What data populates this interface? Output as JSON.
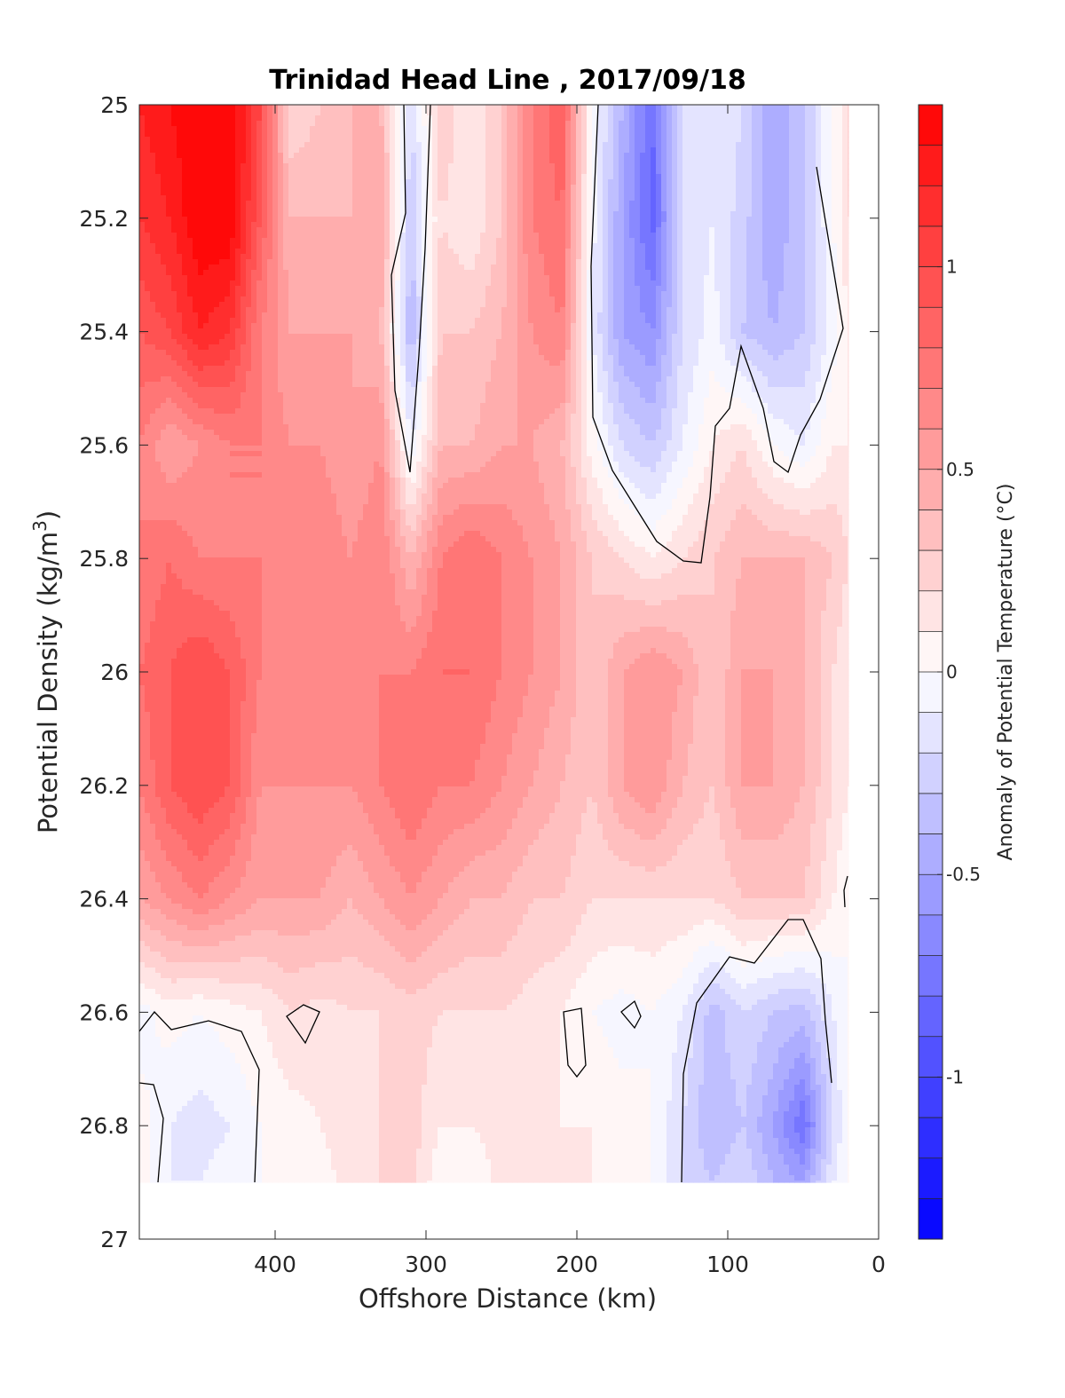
{
  "chart_data": {
    "type": "heatmap",
    "title": "Trinidad Head Line , 2017/09/18",
    "xlabel": "Offshore Distance (km)",
    "ylabel": "Potential Density (kg/m³)",
    "xlim": [
      490,
      0
    ],
    "x_direction": "reversed",
    "ylim": [
      25,
      27
    ],
    "y_direction": "reversed",
    "x_ticks": [
      "400",
      "300",
      "200",
      "100",
      "0"
    ],
    "y_ticks": [
      "25",
      "25.2",
      "25.4",
      "25.6",
      "25.8",
      "26",
      "26.2",
      "26.4",
      "26.6",
      "26.8",
      "27"
    ],
    "colorbar": {
      "label": "Anomaly of Potential Temperature (°C)",
      "range": [
        -1.4,
        1.4
      ],
      "levels": 28,
      "ticks": [
        "1",
        "0.5",
        "0",
        "-0.5",
        "-1"
      ],
      "low_color": "#0000ff",
      "mid_color": "#ffffff",
      "high_color": "#ff0000"
    },
    "grid_x": [
      490,
      470,
      450,
      430,
      410,
      390,
      370,
      350,
      330,
      310,
      290,
      270,
      250,
      230,
      210,
      190,
      170,
      150,
      130,
      110,
      90,
      70,
      50,
      30,
      20
    ],
    "grid_y": [
      25.0,
      25.2,
      25.4,
      25.6,
      25.8,
      26.0,
      26.2,
      26.4,
      26.6,
      26.8,
      26.9
    ],
    "anomaly": [
      [
        1.2,
        1.3,
        1.4,
        1.4,
        1.0,
        0.2,
        0.3,
        0.4,
        0.4,
        -0.2,
        0.3,
        0.1,
        0.3,
        0.7,
        0.9,
        0.0,
        -0.4,
        -0.8,
        -0.2,
        -0.1,
        -0.2,
        -0.5,
        -0.3,
        0.0,
        0.2
      ],
      [
        1.1,
        1.2,
        1.4,
        1.4,
        0.9,
        0.4,
        0.4,
        0.4,
        0.5,
        -0.3,
        0.2,
        0.1,
        0.3,
        0.7,
        0.8,
        -0.05,
        -0.5,
        -0.85,
        -0.2,
        -0.1,
        -0.25,
        -0.5,
        -0.3,
        0.0,
        0.2
      ],
      [
        0.9,
        1.0,
        1.2,
        1.1,
        0.7,
        0.5,
        0.5,
        0.5,
        0.4,
        -0.4,
        0.3,
        0.3,
        0.4,
        0.6,
        0.7,
        -0.1,
        -0.5,
        -0.6,
        -0.2,
        -0.05,
        -0.3,
        -0.4,
        -0.3,
        -0.05,
        0.1
      ],
      [
        0.7,
        0.5,
        0.6,
        0.7,
        0.7,
        0.6,
        0.6,
        0.5,
        0.6,
        -0.1,
        0.4,
        0.4,
        0.5,
        0.5,
        0.4,
        0.05,
        -0.2,
        -0.3,
        -0.1,
        0.1,
        0.2,
        0.0,
        -0.1,
        0.1,
        0.1
      ],
      [
        0.7,
        0.8,
        0.7,
        0.7,
        0.7,
        0.7,
        0.7,
        0.6,
        0.7,
        0.4,
        0.7,
        0.8,
        0.7,
        0.6,
        0.5,
        0.3,
        0.2,
        0.1,
        0.2,
        0.3,
        0.4,
        0.4,
        0.4,
        0.3,
        0.2
      ],
      [
        0.8,
        0.9,
        1.0,
        0.9,
        0.7,
        0.7,
        0.7,
        0.6,
        0.7,
        0.7,
        0.8,
        0.8,
        0.7,
        0.6,
        0.5,
        0.3,
        0.5,
        0.6,
        0.5,
        0.3,
        0.5,
        0.5,
        0.4,
        0.2,
        0.1
      ],
      [
        0.7,
        0.9,
        1.0,
        0.9,
        0.6,
        0.6,
        0.6,
        0.6,
        0.7,
        0.8,
        0.7,
        0.7,
        0.6,
        0.5,
        0.4,
        0.3,
        0.5,
        0.6,
        0.4,
        0.3,
        0.5,
        0.5,
        0.4,
        0.2,
        0.1
      ],
      [
        0.5,
        0.6,
        0.7,
        0.6,
        0.5,
        0.5,
        0.5,
        0.4,
        0.5,
        0.6,
        0.5,
        0.4,
        0.4,
        0.3,
        0.3,
        0.2,
        0.2,
        0.2,
        0.2,
        0.2,
        0.3,
        0.3,
        0.3,
        0.1,
        0.0
      ],
      [
        -0.05,
        0.05,
        0.0,
        0.05,
        0.1,
        0.2,
        0.15,
        0.2,
        0.2,
        0.25,
        0.2,
        0.2,
        0.2,
        0.15,
        0.1,
        0.0,
        -0.05,
        0.0,
        -0.1,
        -0.35,
        -0.2,
        -0.3,
        -0.35,
        -0.1,
        0.0
      ],
      [
        0.05,
        -0.1,
        -0.15,
        -0.1,
        0.0,
        0.05,
        0.1,
        0.15,
        0.2,
        0.25,
        0.1,
        0.1,
        0.15,
        0.15,
        0.1,
        0.1,
        0.05,
        0.0,
        -0.2,
        -0.4,
        -0.3,
        -0.5,
        -0.8,
        -0.2,
        0.0
      ],
      [
        0.05,
        -0.1,
        -0.1,
        -0.05,
        0.0,
        0.05,
        0.05,
        0.15,
        0.2,
        0.25,
        0.0,
        0.0,
        0.15,
        0.15,
        0.15,
        0.1,
        0.05,
        0.0,
        -0.2,
        -0.3,
        -0.2,
        -0.4,
        -0.5,
        -0.1,
        0.0
      ]
    ]
  }
}
